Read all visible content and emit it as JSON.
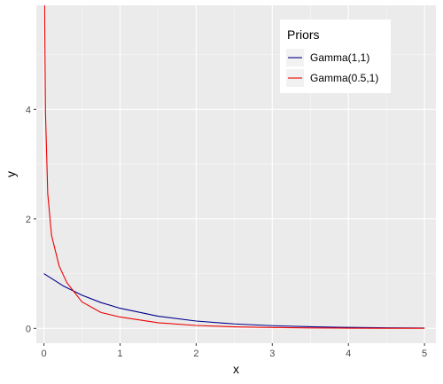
{
  "chart_data": {
    "type": "line",
    "xlabel": "x",
    "ylabel": "y",
    "xlim": [
      -0.1,
      5.15
    ],
    "ylim": [
      -0.27,
      5.9
    ],
    "x_ticks": [
      0,
      1,
      2,
      3,
      4,
      5
    ],
    "x_tick_labels": [
      "0",
      "1",
      "2",
      "3",
      "4",
      "5"
    ],
    "y_ticks": [
      0,
      2,
      4
    ],
    "y_tick_labels": [
      "0",
      "2",
      "4"
    ],
    "grid": true,
    "legend": {
      "title": "Priors",
      "placement": "top-right",
      "entries": [
        "Gamma(1,1)",
        "Gamma(0.5,1)"
      ]
    },
    "series": [
      {
        "name": "Gamma(1,1)",
        "color": "#00008b",
        "x": [
          0,
          0.25,
          0.5,
          0.75,
          1,
          1.5,
          2,
          2.5,
          3,
          3.5,
          4,
          4.5,
          5
        ],
        "values": [
          1.0,
          0.779,
          0.607,
          0.472,
          0.368,
          0.223,
          0.135,
          0.082,
          0.05,
          0.03,
          0.018,
          0.011,
          0.007
        ]
      },
      {
        "name": "Gamma(0.5,1)",
        "color": "#ee0000",
        "x": [
          0.0085,
          0.01,
          0.02,
          0.05,
          0.1,
          0.2,
          0.3,
          0.5,
          0.75,
          1,
          1.5,
          2,
          2.5,
          3,
          3.5,
          4,
          4.5,
          5
        ],
        "values": [
          6.09,
          5.61,
          3.95,
          2.46,
          1.7,
          1.14,
          0.838,
          0.484,
          0.291,
          0.208,
          0.103,
          0.054,
          0.029,
          0.016,
          0.009,
          0.005,
          0.003,
          0.002
        ]
      }
    ]
  }
}
